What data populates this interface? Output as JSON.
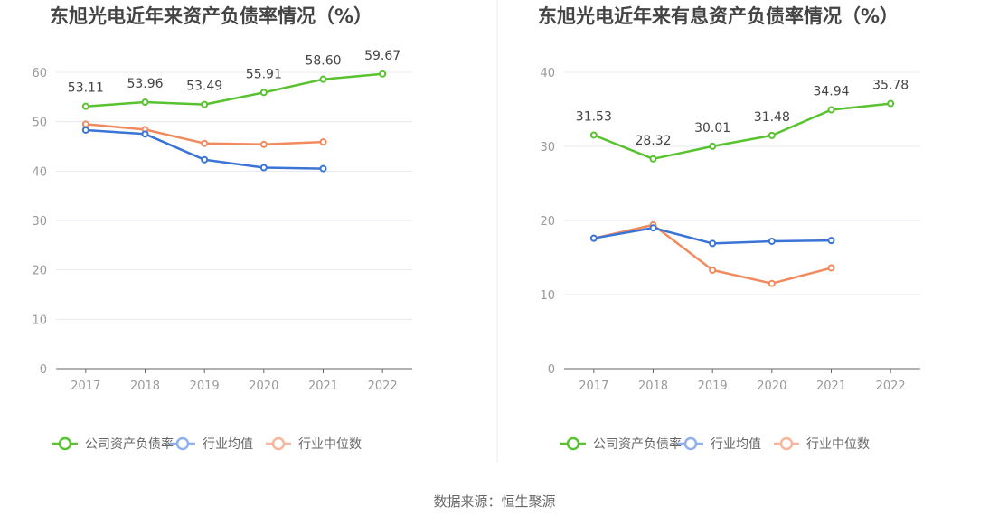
{
  "source": "数据来源：恒生聚源",
  "colors": {
    "company": "#58c22f",
    "industry_avg": "#3a74d6",
    "industry_median": "#f28a5f",
    "grid": "#e6e8ef",
    "axis": "#666666"
  },
  "chart_data": [
    {
      "type": "line",
      "title": "东旭光电近年来资产负债率情况（%）",
      "categories": [
        "2017",
        "2018",
        "2019",
        "2020",
        "2021",
        "2022"
      ],
      "ylim": [
        0,
        60
      ],
      "yticks": [
        "0",
        "10",
        "20",
        "30",
        "40",
        "50",
        "60"
      ],
      "grid": true,
      "legend_position": "bottom-left",
      "series": [
        {
          "name": "公司资产负债率",
          "values": [
            53.11,
            53.96,
            53.49,
            55.91,
            58.6,
            59.67
          ],
          "labels": [
            "53.11",
            "53.96",
            "53.49",
            "55.91",
            "58.60",
            "59.67"
          ]
        },
        {
          "name": "行业均值",
          "values": [
            48.3,
            47.5,
            42.3,
            40.7,
            40.5,
            null
          ]
        },
        {
          "name": "行业中位数",
          "values": [
            49.5,
            48.4,
            45.6,
            45.4,
            45.9,
            null
          ]
        }
      ]
    },
    {
      "type": "line",
      "title": "东旭光电近年来有息资产负债率情况（%）",
      "categories": [
        "2017",
        "2018",
        "2019",
        "2020",
        "2021",
        "2022"
      ],
      "ylim": [
        0,
        40
      ],
      "yticks": [
        "0",
        "10",
        "20",
        "30",
        "40"
      ],
      "grid": true,
      "legend_position": "bottom-left",
      "series": [
        {
          "name": "公司资产负债率",
          "values": [
            31.53,
            28.32,
            30.01,
            31.48,
            34.94,
            35.78
          ],
          "labels": [
            "31.53",
            "28.32",
            "30.01",
            "31.48",
            "34.94",
            "35.78"
          ]
        },
        {
          "name": "行业均值",
          "values": [
            17.6,
            19.0,
            16.9,
            17.2,
            17.3,
            null
          ]
        },
        {
          "name": "行业中位数",
          "values": [
            17.6,
            19.4,
            13.3,
            11.5,
            13.6,
            null
          ]
        }
      ]
    }
  ]
}
